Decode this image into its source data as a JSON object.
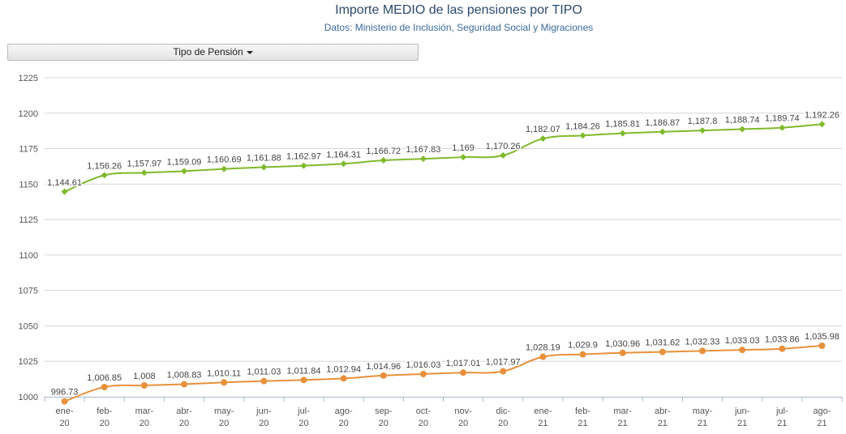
{
  "header": {
    "title": "Importe MEDIO de las pensiones por TIPO",
    "subtitle": "Datos: Ministerio de Inclusión, Seguridad Social y Migraciones"
  },
  "filter": {
    "label": "Tipo de Pensión"
  },
  "chart_data": {
    "type": "line",
    "title": "Importe MEDIO de las pensiones por TIPO",
    "subtitle": "Datos: Ministerio de Inclusión, Seguridad Social y Migraciones",
    "categories": [
      [
        "ene-",
        "20"
      ],
      [
        "feb-",
        "20"
      ],
      [
        "mar-",
        "20"
      ],
      [
        "abr-",
        "20"
      ],
      [
        "may-",
        "20"
      ],
      [
        "jun-",
        "20"
      ],
      [
        "jul-",
        "20"
      ],
      [
        "ago-",
        "20"
      ],
      [
        "sep-",
        "20"
      ],
      [
        "oct-",
        "20"
      ],
      [
        "nov-",
        "20"
      ],
      [
        "dic-",
        "20"
      ],
      [
        "ene-",
        "21"
      ],
      [
        "feb-",
        "21"
      ],
      [
        "mar-",
        "21"
      ],
      [
        "abr-",
        "21"
      ],
      [
        "may-",
        "21"
      ],
      [
        "jun-",
        "21"
      ],
      [
        "jul-",
        "21"
      ],
      [
        "ago-",
        "21"
      ]
    ],
    "y_ticks": [
      1000,
      1025,
      1050,
      1075,
      1100,
      1125,
      1150,
      1175,
      1200,
      1225
    ],
    "ylim": [
      1000,
      1225
    ],
    "grid": true,
    "series": [
      {
        "color": "#7fba2b",
        "marker": "diamond",
        "values": [
          1144.61,
          1156.26,
          1157.97,
          1159.09,
          1160.69,
          1161.88,
          1162.97,
          1164.31,
          1166.72,
          1167.83,
          1169,
          1170.26,
          1182.07,
          1184.26,
          1185.81,
          1186.87,
          1187.8,
          1188.74,
          1189.74,
          1192.26
        ],
        "labels": [
          "1,144.61",
          "1,156.26",
          "1,157.97",
          "1,159.09",
          "1,160.69",
          "1,161.88",
          "1,162.97",
          "1,164.31",
          "1,166.72",
          "1,167.83",
          "1,169",
          "1,170.26",
          "1,182.07",
          "1,184.26",
          "1,185.81",
          "1,186.87",
          "1,187.8",
          "1,188.74",
          "1,189.74",
          "1,192.26"
        ]
      },
      {
        "color": "#e8913c",
        "marker": "circle",
        "values": [
          996.73,
          1006.85,
          1008,
          1008.83,
          1010.11,
          1011.03,
          1011.84,
          1012.94,
          1014.96,
          1016.03,
          1017.01,
          1017.97,
          1028.19,
          1029.9,
          1030.96,
          1031.62,
          1032.33,
          1033.03,
          1033.86,
          1035.98
        ],
        "labels": [
          "996.73",
          "1,006.85",
          "1,008",
          "1,008.83",
          "1,010.11",
          "1,011.03",
          "1,011.84",
          "1,012.94",
          "1,014.96",
          "1,016.03",
          "1,017.01",
          "1,017.97",
          "1,028.19",
          "1,029.9",
          "1,030.96",
          "1,031.62",
          "1,032.33",
          "1,033.03",
          "1,033.86",
          "1,035.98"
        ]
      }
    ]
  }
}
